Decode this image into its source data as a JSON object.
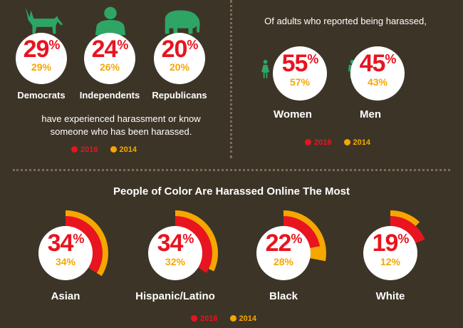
{
  "colors": {
    "background": "#3c3527",
    "red_2016": "#e8141f",
    "orange_2014": "#f5a700",
    "green_icon": "#2ea565",
    "white": "#ffffff"
  },
  "chart_data": [
    {
      "type": "bar",
      "title": "",
      "categories": [
        "Democrats",
        "Independents",
        "Republicans"
      ],
      "series": [
        {
          "name": "2016",
          "values": [
            29,
            24,
            20
          ]
        },
        {
          "name": "2014",
          "values": [
            29,
            26,
            20
          ]
        }
      ],
      "caption": "have experienced harassment or know someone who has been harassed.",
      "icons": [
        "donkey-icon",
        "person-bust-icon",
        "elephant-icon"
      ],
      "legend": [
        "2016",
        "2014"
      ]
    },
    {
      "type": "bar",
      "title": "Of adults who reported being harassed,",
      "categories": [
        "Women",
        "Men"
      ],
      "series": [
        {
          "name": "2016",
          "values": [
            55,
            45
          ]
        },
        {
          "name": "2014",
          "values": [
            57,
            43
          ]
        }
      ],
      "icons": [
        "woman-icon",
        "man-icon"
      ],
      "legend": [
        "2016",
        "2014"
      ]
    },
    {
      "type": "pie",
      "title": "People of Color Are Harassed Online The Most",
      "categories": [
        "Asian",
        "Hispanic/Latino",
        "Black",
        "White"
      ],
      "series": [
        {
          "name": "2016",
          "values": [
            34,
            34,
            22,
            19
          ]
        },
        {
          "name": "2014",
          "values": [
            34,
            32,
            28,
            12
          ]
        }
      ],
      "legend": [
        "2016",
        "2014"
      ]
    }
  ],
  "labels": {
    "legend_2016": "2016",
    "legend_2014": "2014",
    "percent_sign": "%"
  }
}
